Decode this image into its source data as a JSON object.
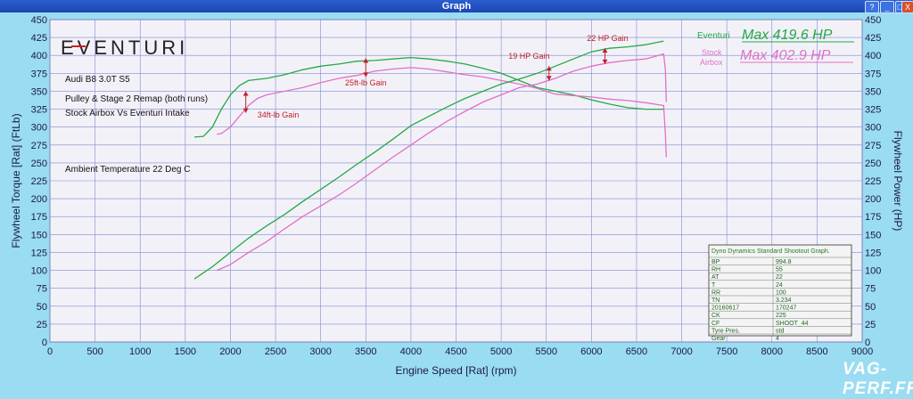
{
  "window": {
    "title": "Graph",
    "buttons": [
      "?",
      "_",
      "□",
      "X"
    ]
  },
  "chart_data": {
    "type": "line",
    "xlabel": "Engine Speed [Rat] (rpm)",
    "ylabel_left": "Flywheel Torque [Rat] (FtLb)",
    "ylabel_right": "Flywheel Power (HP)",
    "xlim": [
      0,
      9000
    ],
    "ylim": [
      0,
      450
    ],
    "x_ticks": [
      0,
      500,
      1000,
      1500,
      2000,
      2500,
      3000,
      3500,
      4000,
      4500,
      5000,
      5500,
      6000,
      6500,
      7000,
      7500,
      8000,
      8500,
      9000
    ],
    "y_ticks": [
      0,
      25,
      50,
      75,
      100,
      125,
      150,
      175,
      200,
      225,
      250,
      275,
      300,
      325,
      350,
      375,
      400,
      425,
      450
    ],
    "grid": true,
    "series": [
      {
        "name": "Eventuri",
        "measure": "torque",
        "color": "#22aa44",
        "x": [
          1600,
          1700,
          1800,
          1900,
          2000,
          2100,
          2200,
          2400,
          2600,
          2800,
          3000,
          3200,
          3400,
          3600,
          3800,
          4000,
          4200,
          4400,
          4600,
          4800,
          5000,
          5200,
          5400,
          5600,
          5800,
          6000,
          6200,
          6400,
          6600,
          6800
        ],
        "y": [
          286,
          287,
          300,
          325,
          345,
          358,
          365,
          368,
          373,
          380,
          385,
          388,
          392,
          393,
          395,
          397,
          395,
          392,
          388,
          382,
          375,
          365,
          355,
          350,
          345,
          338,
          332,
          327,
          325,
          325
        ]
      },
      {
        "name": "Stock Airbox",
        "measure": "torque",
        "color": "#e070c8",
        "x": [
          1850,
          1900,
          2000,
          2100,
          2200,
          2300,
          2400,
          2600,
          2800,
          3000,
          3200,
          3400,
          3600,
          3800,
          4000,
          4200,
          4400,
          4600,
          4800,
          5000,
          5200,
          5400,
          5600,
          5800,
          6000,
          6200,
          6400,
          6600,
          6800,
          6820,
          6830
        ],
        "y": [
          290,
          291,
          300,
          315,
          330,
          340,
          345,
          350,
          355,
          362,
          368,
          372,
          378,
          381,
          383,
          381,
          377,
          373,
          370,
          365,
          360,
          354,
          346,
          344,
          342,
          339,
          337,
          334,
          330,
          290,
          258
        ]
      },
      {
        "name": "Eventuri",
        "measure": "power",
        "color": "#22aa44",
        "x": [
          1600,
          1800,
          2000,
          2200,
          2400,
          2600,
          2800,
          3000,
          3200,
          3400,
          3600,
          3800,
          4000,
          4200,
          4400,
          4600,
          4800,
          5000,
          5200,
          5400,
          5600,
          5800,
          6000,
          6200,
          6400,
          6600,
          6800
        ],
        "y": [
          88,
          105,
          125,
          145,
          162,
          178,
          196,
          213,
          230,
          248,
          265,
          283,
          302,
          315,
          328,
          340,
          350,
          360,
          367,
          375,
          385,
          395,
          405,
          410,
          412,
          415,
          420
        ]
      },
      {
        "name": "Stock Airbox",
        "measure": "power",
        "color": "#e070c8",
        "x": [
          1850,
          2000,
          2200,
          2400,
          2600,
          2800,
          3000,
          3200,
          3400,
          3600,
          3800,
          4000,
          4200,
          4400,
          4600,
          4800,
          5000,
          5200,
          5400,
          5600,
          5800,
          6000,
          6200,
          6400,
          6600,
          6800,
          6820,
          6830
        ],
        "y": [
          100,
          108,
          125,
          140,
          158,
          175,
          190,
          205,
          222,
          240,
          258,
          275,
          292,
          308,
          322,
          335,
          345,
          355,
          360,
          368,
          378,
          385,
          390,
          393,
          395,
          402,
          380,
          335
        ]
      }
    ],
    "gain_markers": [
      {
        "label": "34ft-lb Gain",
        "x": 2170,
        "y_from": 320,
        "y_to": 350,
        "label_x": 2300,
        "label_y": 313
      },
      {
        "label": "25ft-lb Gain",
        "x": 3500,
        "y_from": 370,
        "y_to": 396,
        "label_x": 3270,
        "label_y": 358
      },
      {
        "label": "19 HP Gain",
        "x": 5530,
        "y_from": 365,
        "y_to": 385,
        "label_x": 5080,
        "label_y": 395
      },
      {
        "label": "22 HP Gain",
        "x": 6150,
        "y_from": 388,
        "y_to": 410,
        "label_x": 5950,
        "label_y": 420
      }
    ],
    "legend": {
      "placement": "top-right",
      "entries": [
        {
          "name": "Eventuri",
          "max": "Max 419.6 HP",
          "color": "#22aa44"
        },
        {
          "name": "Stock Airbox",
          "max": "Max 402.9 HP",
          "color": "#e070c8"
        }
      ]
    },
    "annotations": [
      "Audi B8 3.0T S5",
      "Pulley & Stage 2 Remap (both runs)",
      "Stock Airbox Vs Eventuri Intake",
      "Ambient Temperature 22 Deg C"
    ]
  },
  "logo_text": "EVENTURI",
  "info_table": {
    "title": "Dyno Dynamics Standard Shootout Graph.",
    "rows": [
      [
        "BP",
        "994.8"
      ],
      [
        "RH",
        "55"
      ],
      [
        "AT",
        "22"
      ],
      [
        "T",
        "24"
      ],
      [
        "RR",
        "100"
      ],
      [
        "TN",
        "3.234"
      ],
      [
        "20160617",
        "170247"
      ],
      [
        "CK",
        "225"
      ],
      [
        "CF",
        "SHOOT_44"
      ],
      [
        "Tyre Pres.",
        "std"
      ],
      [
        "Gear",
        "4"
      ]
    ]
  },
  "watermark": "VAG-PERF.FR"
}
